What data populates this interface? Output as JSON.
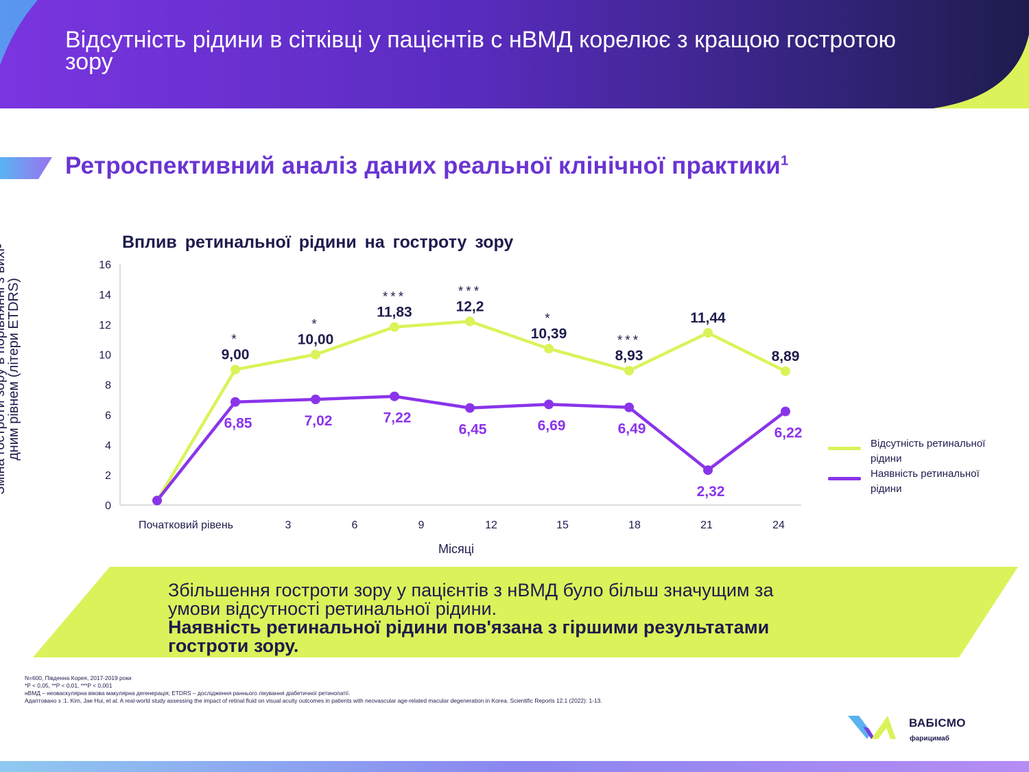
{
  "header": {
    "title": "Відсутність рідини в сітківці у пацієнтів с нВМД корелює з кращою гостротою зору"
  },
  "section": {
    "title": "Ретроспективний аналіз даних реальної клінічної практики",
    "sup": "1"
  },
  "chart_data": {
    "type": "line",
    "title": "Вплив ретинальної рідини на гостроту зору",
    "xlabel": "Місяці",
    "ylabel": "Зміна гостроти зору в порівнянні з вихі-дним рівнем (літери ETDRS)",
    "categories": [
      "Початковий рівень",
      "3",
      "6",
      "9",
      "12",
      "15",
      "18",
      "21",
      "24"
    ],
    "ylim": [
      0,
      16
    ],
    "yticks": [
      "0",
      "2",
      "4",
      "6",
      "8",
      "10",
      "12",
      "14",
      "16"
    ],
    "grid": false,
    "legend_position": "right",
    "series": [
      {
        "name": "Відсутність ретинальної рідини",
        "color": "#dcf25a",
        "values": [
          0.3,
          9.0,
          10.0,
          11.83,
          12.2,
          10.39,
          8.93,
          11.44,
          8.89
        ],
        "labels": [
          "",
          "9,00",
          "10,00",
          "11,83",
          "12,2",
          "10,39",
          "8,93",
          "11,44",
          "8,89"
        ],
        "significance": [
          "",
          "*",
          "*",
          "***",
          "***",
          "*",
          "***",
          "",
          ""
        ]
      },
      {
        "name": "Наявність ретинальної рідини",
        "color": "#8a34ea",
        "values": [
          0.3,
          6.85,
          7.02,
          7.22,
          6.45,
          6.69,
          6.49,
          2.32,
          6.22
        ],
        "labels": [
          "",
          "6,85",
          "7,02",
          "7,22",
          "6,45",
          "6,69",
          "6,49",
          "2,32",
          "6,22"
        ]
      }
    ]
  },
  "legend": {
    "absent_line1": "Відсутність ретинальної",
    "absent_line2": "рідини",
    "present_line1": "Наявність ретинальної",
    "present_line2": "рідини"
  },
  "banner": {
    "line1": "Збільшення гостроти зору у пацієнтів з нВМД було більш значущим за",
    "line2": "умови відсутності ретинальної рідини.",
    "line3": "Наявність  ретинальної  рідини  пов'язана з гіршими результатами",
    "line4": "гостроти  зору."
  },
  "footnotes": {
    "n": "N=600, Південна Корея, 2017-2019 роки",
    "p": "*P < 0,05, **P < 0,01, ***P < 0,001",
    "abbr": "нВМД – неоваскулярна вікова макулярна дегенерація; ETDRS – дослідження раннього лікування діабетичної ретинопатії.",
    "ref": "Адаптовано з :1. Kim, Jae Hui, et al. A real-world study assessing the impact of retinal fluid on visual acuity outcomes in patients with neovascular age-related macular degeneration in Korea. Scientific Reports 12.1 (2022): 1-13."
  },
  "logo": {
    "name": "ВАБІСМО",
    "sub": "фарицимаб"
  },
  "colors": {
    "purple": "#6a34d2",
    "navy": "#1d1c4d",
    "lime": "#dcf25a"
  }
}
